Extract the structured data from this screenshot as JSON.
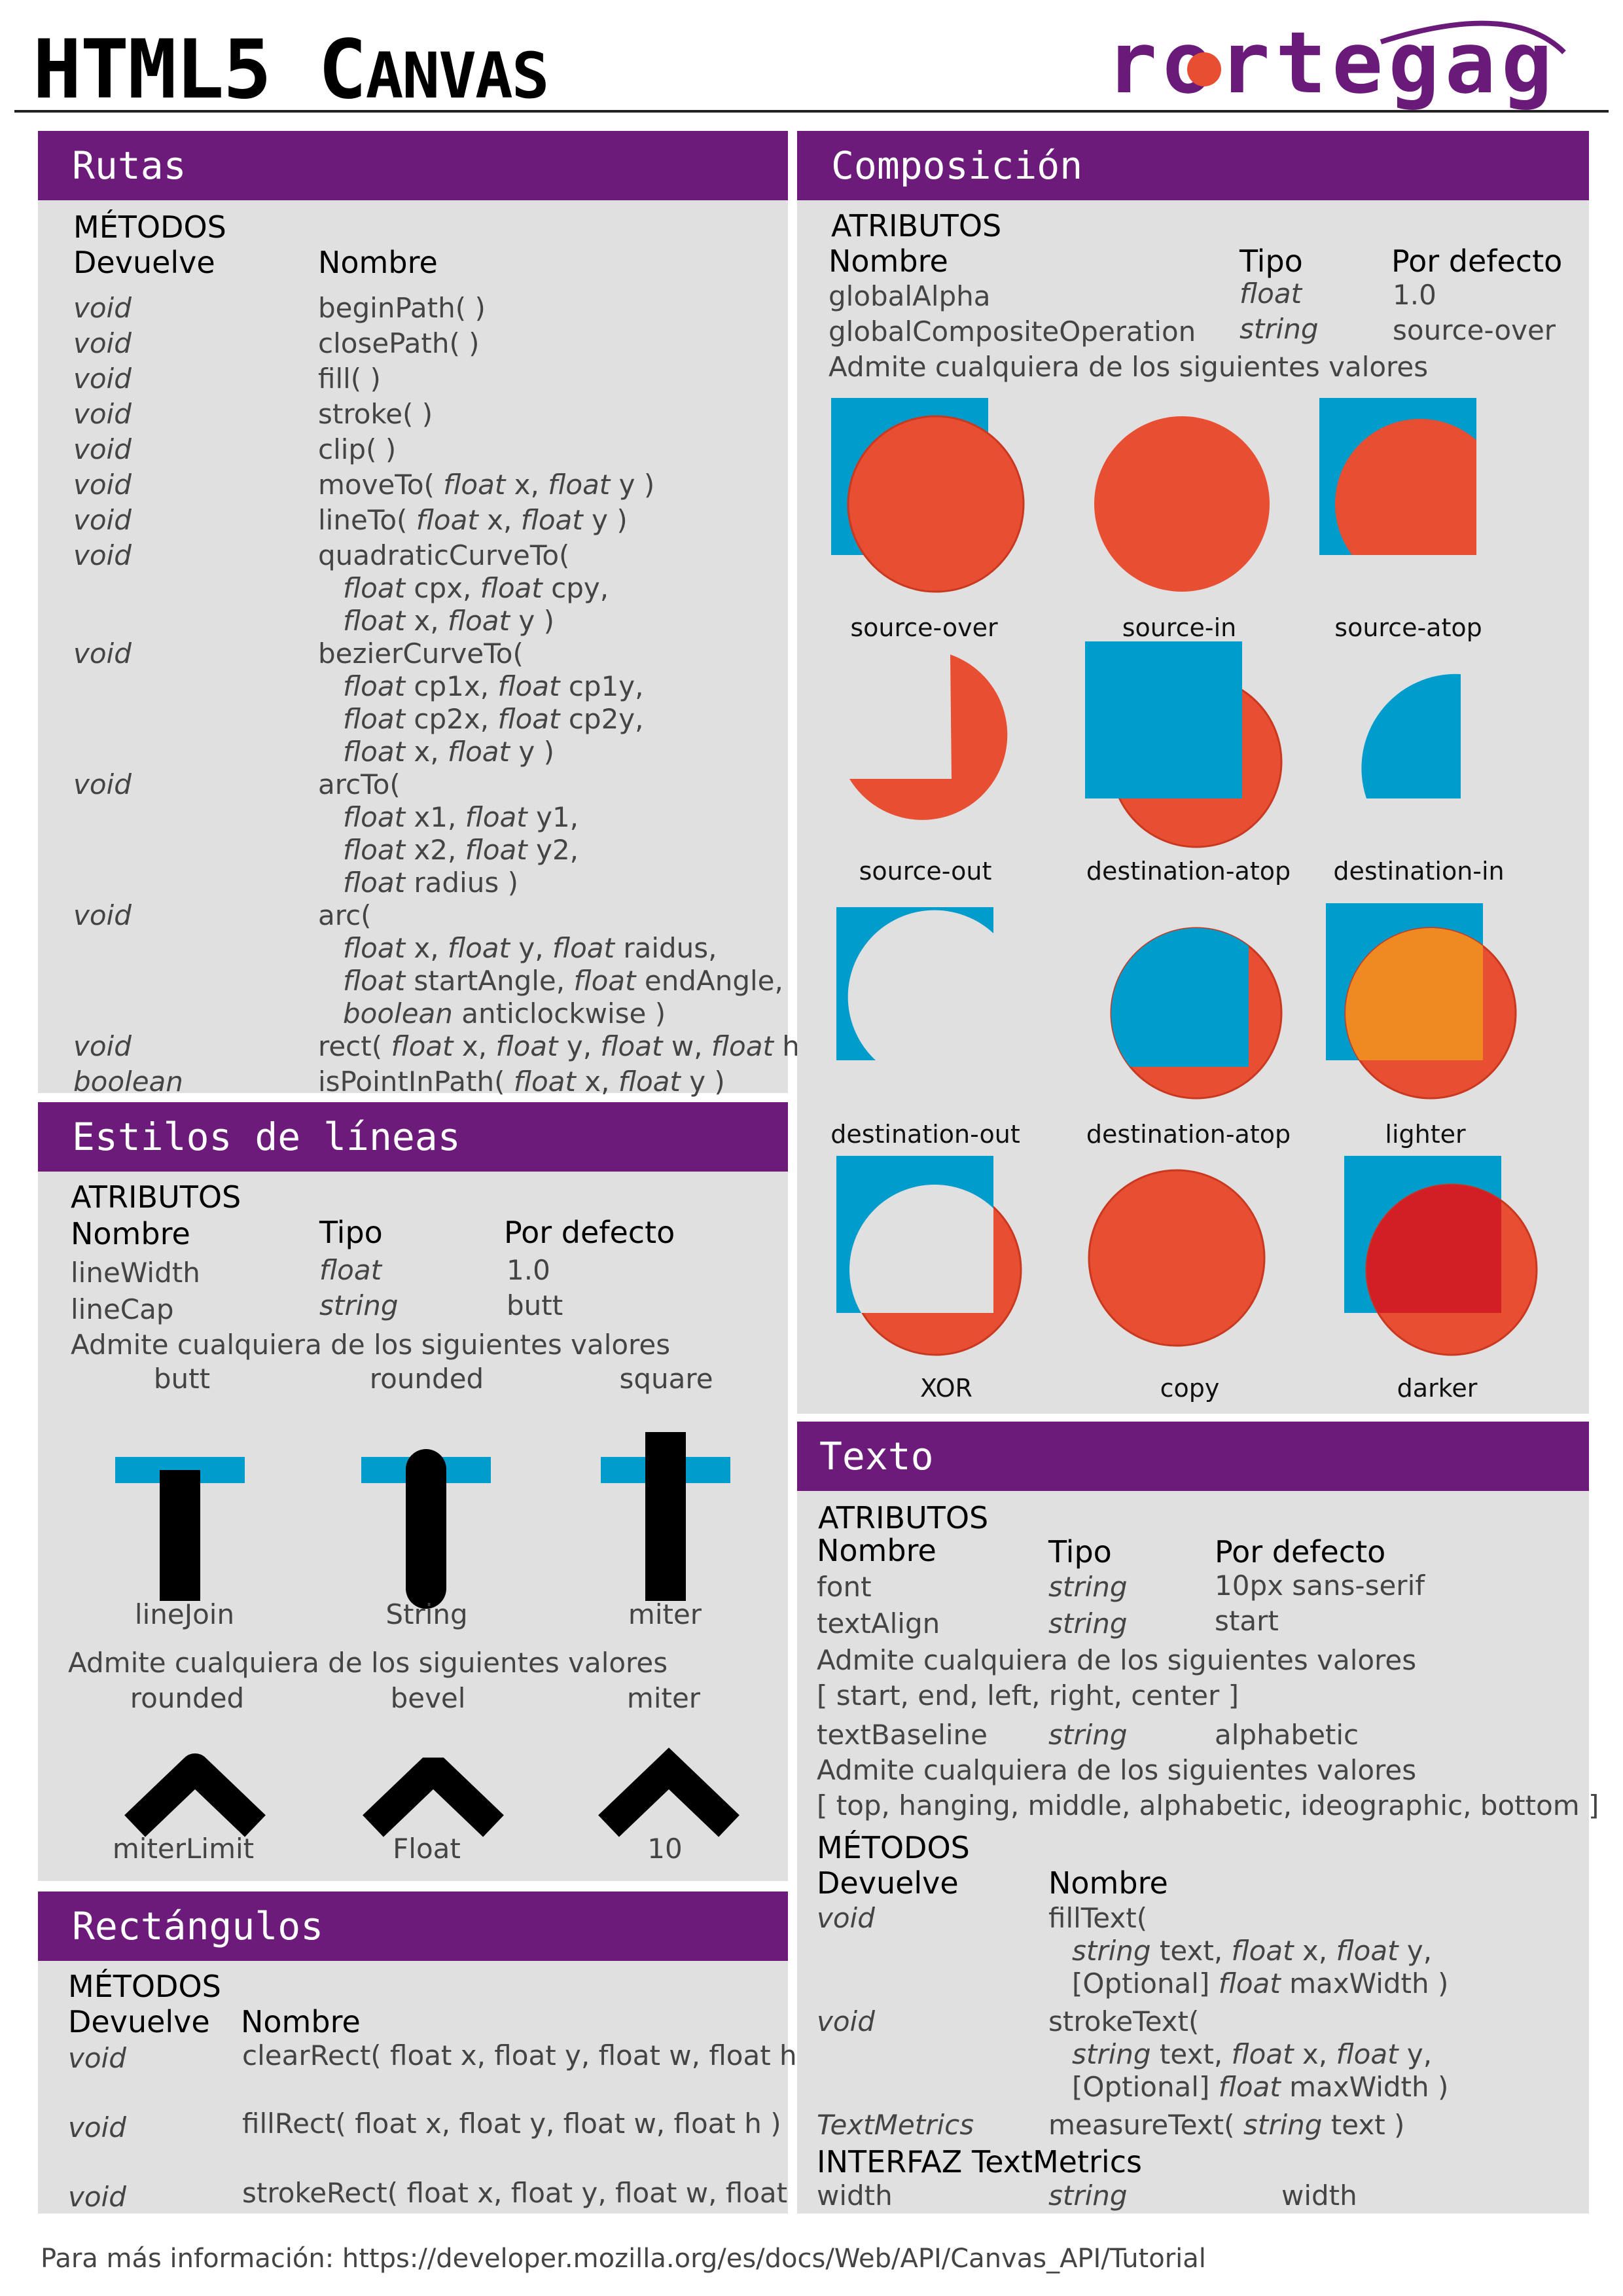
{
  "header": {
    "title_part1": "HTML5 ",
    "title_part2_big": "C",
    "title_part2_small": "ANVAS",
    "logo_text": "rortegag"
  },
  "colors": {
    "purple": "#6d1b7b",
    "blue": "#009ccc",
    "red": "#e84e31",
    "orange": "#ef8a22",
    "darkred": "#d21f25",
    "panel": "#e0e0e0"
  },
  "rutas": {
    "title": "Rutas",
    "section": "MÉTODOS",
    "col_returns": "Devuelve",
    "col_name": "Nombre",
    "rows": [
      {
        "ret": "void",
        "lines": [
          "beginPath( )"
        ]
      },
      {
        "ret": "void",
        "lines": [
          "closePath( )"
        ]
      },
      {
        "ret": "void",
        "lines": [
          "fill( )"
        ]
      },
      {
        "ret": "void",
        "lines": [
          "stroke( )"
        ]
      },
      {
        "ret": "void",
        "lines": [
          "clip( )"
        ]
      },
      {
        "ret": "void",
        "lines": [
          "moveTo( float x, float y )"
        ]
      },
      {
        "ret": "void",
        "lines": [
          "lineTo( float x, float y )"
        ]
      },
      {
        "ret": "void",
        "lines": [
          "quadraticCurveTo(",
          "float cpx, float cpy,",
          "float x, float y )"
        ]
      },
      {
        "ret": "void",
        "lines": [
          "bezierCurveTo(",
          "float cp1x, float cp1y,",
          "float cp2x, float cp2y,",
          "float x, float y )"
        ]
      },
      {
        "ret": "void",
        "lines": [
          "arcTo(",
          "float x1, float y1,",
          "float x2, float y2,",
          "float radius )"
        ]
      },
      {
        "ret": "void",
        "lines": [
          "arc(",
          "float x, float y, float raidus,",
          "float startAngle, float endAngle,",
          "boolean anticlockwise )"
        ]
      },
      {
        "ret": "void",
        "lines": [
          "rect( float x, float y, float w, float h )"
        ]
      },
      {
        "ret": "boolean",
        "lines": [
          "isPointInPath( float x, float y )"
        ]
      }
    ]
  },
  "estilos": {
    "title": "Estilos de líneas",
    "section": "ATRIBUTOS",
    "col_name": "Nombre",
    "col_type": "Tipo",
    "col_default": "Por defecto",
    "rows": [
      {
        "name": "lineWidth",
        "type": "float",
        "def": "1.0"
      },
      {
        "name": "lineCap",
        "type": "string",
        "def": "butt"
      }
    ],
    "admite1": "Admite cualquiera de los siguientes valores",
    "caps": [
      "butt",
      "rounded",
      "square"
    ],
    "row2": [
      "lineJoin",
      "String",
      "miter"
    ],
    "admite2": "Admite cualquiera de los siguientes valores",
    "joins": [
      "rounded",
      "bevel",
      "miter"
    ],
    "row3": [
      "miterLimit",
      "Float",
      "10"
    ]
  },
  "rect": {
    "title": "Rectángulos",
    "section": "MÉTODOS",
    "col_returns": "Devuelve",
    "col_name": "Nombre",
    "rows": [
      {
        "ret": "void",
        "name": "clearRect( float x, float y, float w, float h )"
      },
      {
        "ret": "void",
        "name": "fillRect( float x, float y, float w, float h )"
      },
      {
        "ret": "void",
        "name": "strokeRect( float x, float y, float w, float h )"
      }
    ]
  },
  "comp": {
    "title": "Composición",
    "section": "ATRIBUTOS",
    "col_name": "Nombre",
    "col_type": "Tipo",
    "col_default": "Por defecto",
    "rows": [
      {
        "name": "globalAlpha",
        "type": "float",
        "def": "1.0"
      },
      {
        "name": "globalCompositeOperation",
        "type": "string",
        "def": "source-over"
      }
    ],
    "admite": "Admite cualquiera de los siguientes valores",
    "ops": [
      "source-over",
      "source-in",
      "source-atop",
      "source-out",
      "destination-atop",
      "destination-in",
      "destination-out",
      "destination-atop",
      "lighter",
      "XOR",
      "copy",
      "darker"
    ]
  },
  "texto": {
    "title": "Texto",
    "section": "ATRIBUTOS",
    "col_name": "Nombre",
    "col_type": "Tipo",
    "col_default": "Por defecto",
    "rows": [
      {
        "name": "font",
        "type": "string",
        "def": "10px sans-serif"
      },
      {
        "name": "textAlign",
        "type": "string",
        "def": "start"
      }
    ],
    "admite1": "Admite cualquiera de los siguientes valores",
    "values1": "[ start, end, left, right, center ]",
    "baseline": {
      "name": "textBaseline",
      "type": "string",
      "def": "alphabetic"
    },
    "admite2": "Admite cualquiera de los siguientes valores",
    "values2": "[ top, hanging, middle, alphabetic, ideographic, bottom ]",
    "methods_section": "MÉTODOS",
    "col_returns": "Devuelve",
    "col_name2": "Nombre",
    "methods": [
      {
        "ret": "void",
        "lines": [
          "fillText(",
          "string text, float x, float y,",
          "[Optional] float maxWidth )"
        ]
      },
      {
        "ret": "void",
        "lines": [
          "strokeText(",
          "string text, float x, float y,",
          "[Optional] float maxWidth )"
        ]
      },
      {
        "ret": "TextMetrics",
        "lines": [
          "measureText( string text )"
        ]
      }
    ],
    "interface_title": "INTERFAZ TextMetrics",
    "interface_row": {
      "name": "width",
      "type": "string",
      "def": "width"
    }
  },
  "footer": {
    "text": "Para más información: https://developer.mozilla.org/es/docs/Web/API/Canvas_API/Tutorial"
  }
}
